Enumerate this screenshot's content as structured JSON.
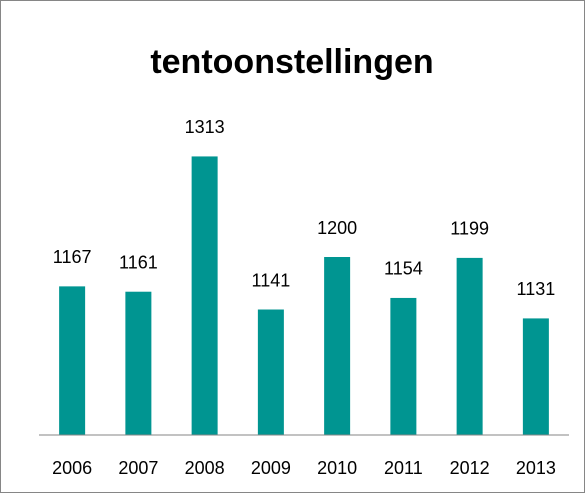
{
  "chart_data": {
    "type": "bar",
    "title": "tentoonstellingen",
    "categories": [
      "2006",
      "2007",
      "2008",
      "2009",
      "2010",
      "2011",
      "2012",
      "2013"
    ],
    "values": [
      1167,
      1161,
      1313,
      1141,
      1200,
      1154,
      1199,
      1131
    ],
    "color": "#009591",
    "ylim": [
      1000,
      1350
    ]
  }
}
